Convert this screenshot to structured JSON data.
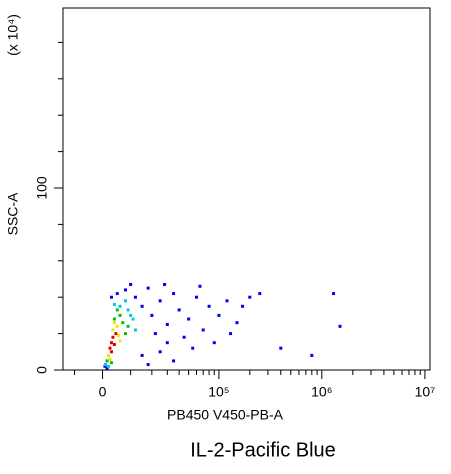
{
  "chart_data": {
    "type": "scatter",
    "xlabel": "PB450 V450-PB-A",
    "ylabel": "SSC-A",
    "yunit": "(x 10⁴)",
    "caption": "IL-2-Pacific Blue",
    "xscale": "biexponential",
    "xlim": [
      -15000,
      11200000
    ],
    "xticks": [
      0,
      {
        "value": 100000,
        "label": "10⁵"
      },
      {
        "value": 1000000,
        "label": "10⁶"
      },
      {
        "value": 10000000,
        "label": "10⁷"
      }
    ],
    "xminorticks": [
      -10000,
      10000,
      20000,
      30000,
      40000,
      50000,
      60000,
      70000,
      80000,
      90000,
      200000,
      300000,
      400000,
      500000,
      600000,
      700000,
      800000,
      900000,
      2000000,
      3000000,
      4000000,
      5000000,
      6000000,
      7000000,
      8000000,
      9000000
    ],
    "ylim": [
      0,
      200
    ],
    "yticks": [
      0,
      100
    ],
    "yminorticks": [
      20,
      40,
      60,
      80,
      120,
      140,
      160,
      180
    ],
    "series": [
      {
        "color": "#0000ff",
        "x": [
          800,
          1500,
          12000,
          15000,
          20000,
          25000,
          30000,
          18000,
          35000,
          40000,
          50000,
          60000,
          70000,
          80000,
          100000,
          120000,
          150000,
          200000,
          250000,
          30000,
          45000,
          25000,
          15000,
          22000,
          90000,
          8000,
          5000,
          3000,
          10000,
          28000,
          65000,
          130000,
          170000,
          400000,
          800000,
          1300000,
          1500000,
          55000,
          35000,
          18000
        ],
        "values": [
          2,
          1,
          40,
          35,
          30,
          38,
          25,
          45,
          42,
          33,
          28,
          40,
          22,
          35,
          30,
          38,
          26,
          40,
          42,
          15,
          18,
          10,
          8,
          20,
          15,
          44,
          42,
          40,
          47,
          47,
          46,
          20,
          35,
          12,
          8,
          42,
          24,
          12,
          5,
          3
        ]
      },
      {
        "color": "#00c8e0",
        "x": [
          1000,
          6000,
          10000,
          12000,
          8000,
          2000,
          11000,
          9000,
          4000
        ],
        "values": [
          3,
          35,
          30,
          22,
          38,
          2,
          28,
          33,
          36
        ]
      },
      {
        "color": "#00c000",
        "x": [
          1500,
          4000,
          7000,
          8000,
          6000,
          3000,
          9000,
          5000
        ],
        "values": [
          5,
          28,
          26,
          20,
          30,
          4,
          24,
          33
        ]
      },
      {
        "color": "#e8e800",
        "x": [
          2000,
          3500,
          5000,
          6000,
          2500,
          5500,
          4000
        ],
        "values": [
          8,
          22,
          24,
          16,
          6,
          19,
          26
        ]
      },
      {
        "color": "#e00000",
        "x": [
          2500,
          3000,
          3500,
          4000,
          3000,
          4500
        ],
        "values": [
          12,
          15,
          18,
          14,
          10,
          20
        ]
      }
    ]
  }
}
